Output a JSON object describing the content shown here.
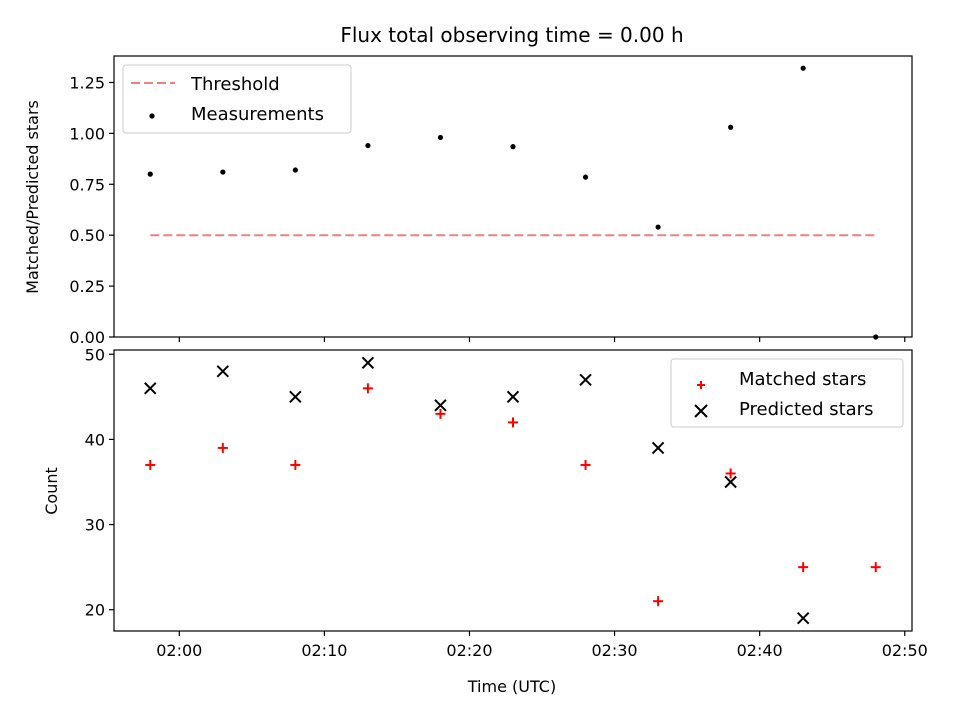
{
  "chart_data": [
    {
      "type": "scatter",
      "title": "Flux total observing time = 0.00 h",
      "xlabel": "",
      "ylabel": "Matched/Predicted stars",
      "x_axis": "time",
      "xlim": [
        "01:55:30",
        "02:50:30"
      ],
      "ylim": [
        0,
        1.38
      ],
      "yticks": [
        0.0,
        0.25,
        0.5,
        0.75,
        1.0,
        1.25
      ],
      "ytick_labels": [
        "0.00",
        "0.25",
        "0.50",
        "0.75",
        "1.00",
        "1.25"
      ],
      "xtick_labels_shown": false,
      "grid": false,
      "legend_position": "top-left",
      "series": [
        {
          "name": "Threshold",
          "kind": "line",
          "style": "dashed",
          "color": "#f08080",
          "x": [
            "01:58",
            "02:48"
          ],
          "y": [
            0.5,
            0.5
          ]
        },
        {
          "name": "Measurements",
          "kind": "scatter",
          "marker": "dot",
          "color": "#000000",
          "x": [
            "01:58",
            "02:03",
            "02:08",
            "02:13",
            "02:18",
            "02:23",
            "02:28",
            "02:33",
            "02:38",
            "02:43",
            "02:48"
          ],
          "y": [
            0.8,
            0.81,
            0.82,
            0.94,
            0.98,
            0.935,
            0.785,
            0.54,
            1.03,
            1.32,
            0.0
          ]
        }
      ]
    },
    {
      "type": "scatter",
      "title": "",
      "xlabel": "Time (UTC)",
      "ylabel": "Count",
      "x_axis": "time",
      "xlim": [
        "01:55:30",
        "02:50:30"
      ],
      "ylim": [
        17.5,
        50.5
      ],
      "yticks": [
        20,
        30,
        40,
        50
      ],
      "ytick_labels": [
        "20",
        "30",
        "40",
        "50"
      ],
      "xticks": [
        "02:00",
        "02:10",
        "02:20",
        "02:30",
        "02:40",
        "02:50"
      ],
      "xtick_labels": [
        "02:00",
        "02:10",
        "02:20",
        "02:30",
        "02:40",
        "02:50"
      ],
      "grid": false,
      "legend_position": "top-right",
      "series": [
        {
          "name": "Matched stars",
          "kind": "scatter",
          "marker": "plus",
          "color": "#ff0000",
          "x": [
            "01:58",
            "02:03",
            "02:08",
            "02:13",
            "02:18",
            "02:23",
            "02:28",
            "02:33",
            "02:38",
            "02:43",
            "02:48"
          ],
          "y": [
            37,
            39,
            37,
            46,
            43,
            42,
            37,
            21,
            36,
            25,
            25
          ]
        },
        {
          "name": "Predicted stars",
          "kind": "scatter",
          "marker": "x",
          "color": "#000000",
          "x": [
            "01:58",
            "02:03",
            "02:08",
            "02:13",
            "02:18",
            "02:23",
            "02:28",
            "02:33",
            "02:38",
            "02:43"
          ],
          "y": [
            46,
            48,
            45,
            49,
            44,
            45,
            47,
            39,
            35,
            19
          ]
        }
      ]
    }
  ]
}
